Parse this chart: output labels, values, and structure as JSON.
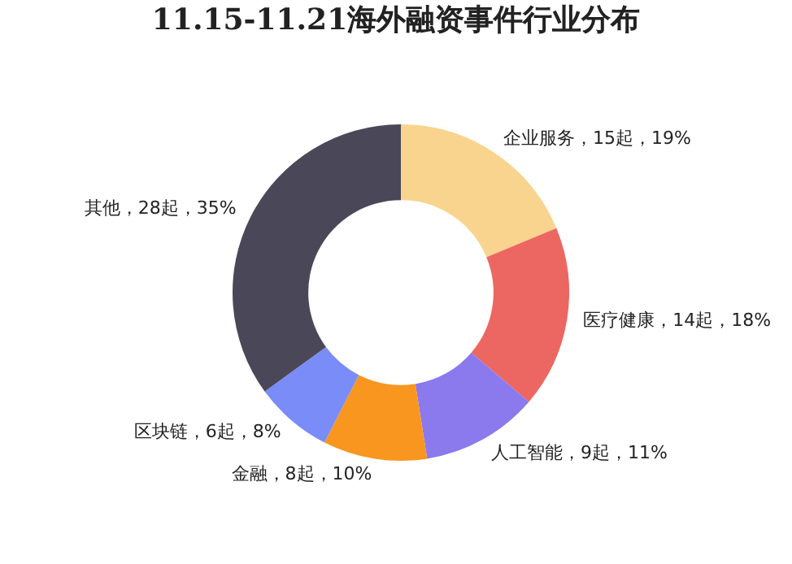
{
  "chart_data": {
    "type": "donut",
    "title": "11.15-11.21海外融资事件行业分布",
    "categories": [
      "企业服务",
      "医疗健康",
      "人工智能",
      "金融",
      "区块链",
      "其他"
    ],
    "values": [
      15,
      14,
      9,
      8,
      6,
      28
    ],
    "colors": [
      "#f8d48e",
      "#ec6762",
      "#8b79ee",
      "#f8961f",
      "#7a8cf8",
      "#4a4858"
    ],
    "value_labels": [
      "15起，19%",
      "14起，18%",
      "9起，11%",
      "8起，10%",
      "6起，8%",
      "28起，35%"
    ],
    "legend": false
  }
}
